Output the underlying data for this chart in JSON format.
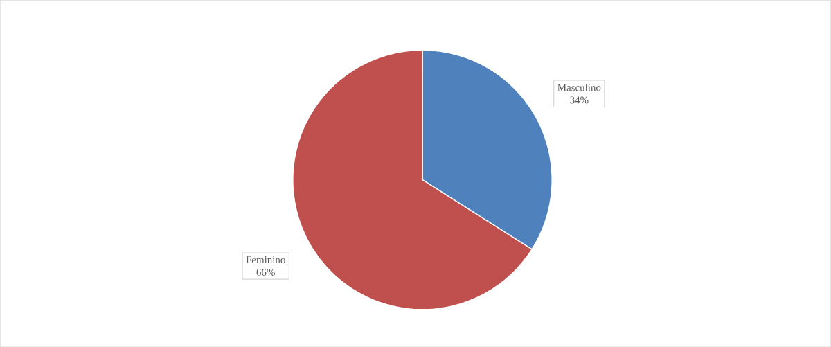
{
  "chart_data": {
    "type": "pie",
    "categories": [
      "Masculino",
      "Feminino"
    ],
    "values": [
      34,
      66
    ],
    "colors": [
      "#4f81bd",
      "#c0504d"
    ],
    "value_labels": [
      "34%",
      "66%"
    ]
  }
}
